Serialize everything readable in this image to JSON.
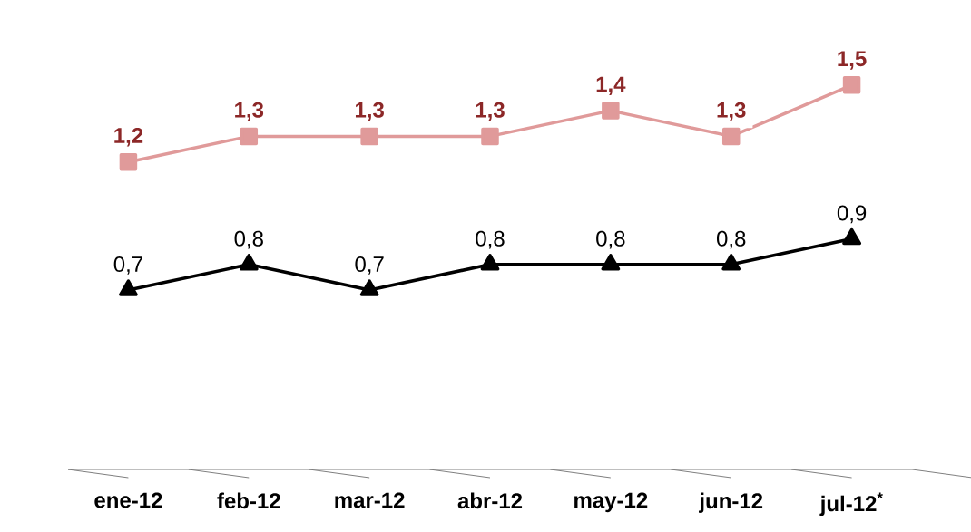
{
  "chart_data": {
    "type": "line",
    "categories": [
      "ene-12",
      "feb-12",
      "mar-12",
      "abr-12",
      "may-12",
      "jun-12",
      "jul-12$^{*}$"
    ],
    "series": [
      {
        "color": "#e09a9a",
        "marker": "square",
        "values": [
          1.2,
          1.3,
          1.3,
          1.3,
          1.4,
          1.3,
          1.5
        ],
        "value_labels": [
          "1,2",
          "1,3",
          "1,3",
          "1,3",
          "1,4",
          "1,3",
          "1,5"
        ]
      },
      {
        "color": "#000000",
        "marker": "triangle",
        "values": [
          0.7,
          0.8,
          0.7,
          0.8,
          0.8,
          0.8,
          0.9
        ],
        "value_labels": [
          "0,7",
          "0,8",
          "0,7",
          "0,8",
          "0,8",
          "0,8",
          "0,9"
        ]
      }
    ],
    "line_style": "solid"
  }
}
